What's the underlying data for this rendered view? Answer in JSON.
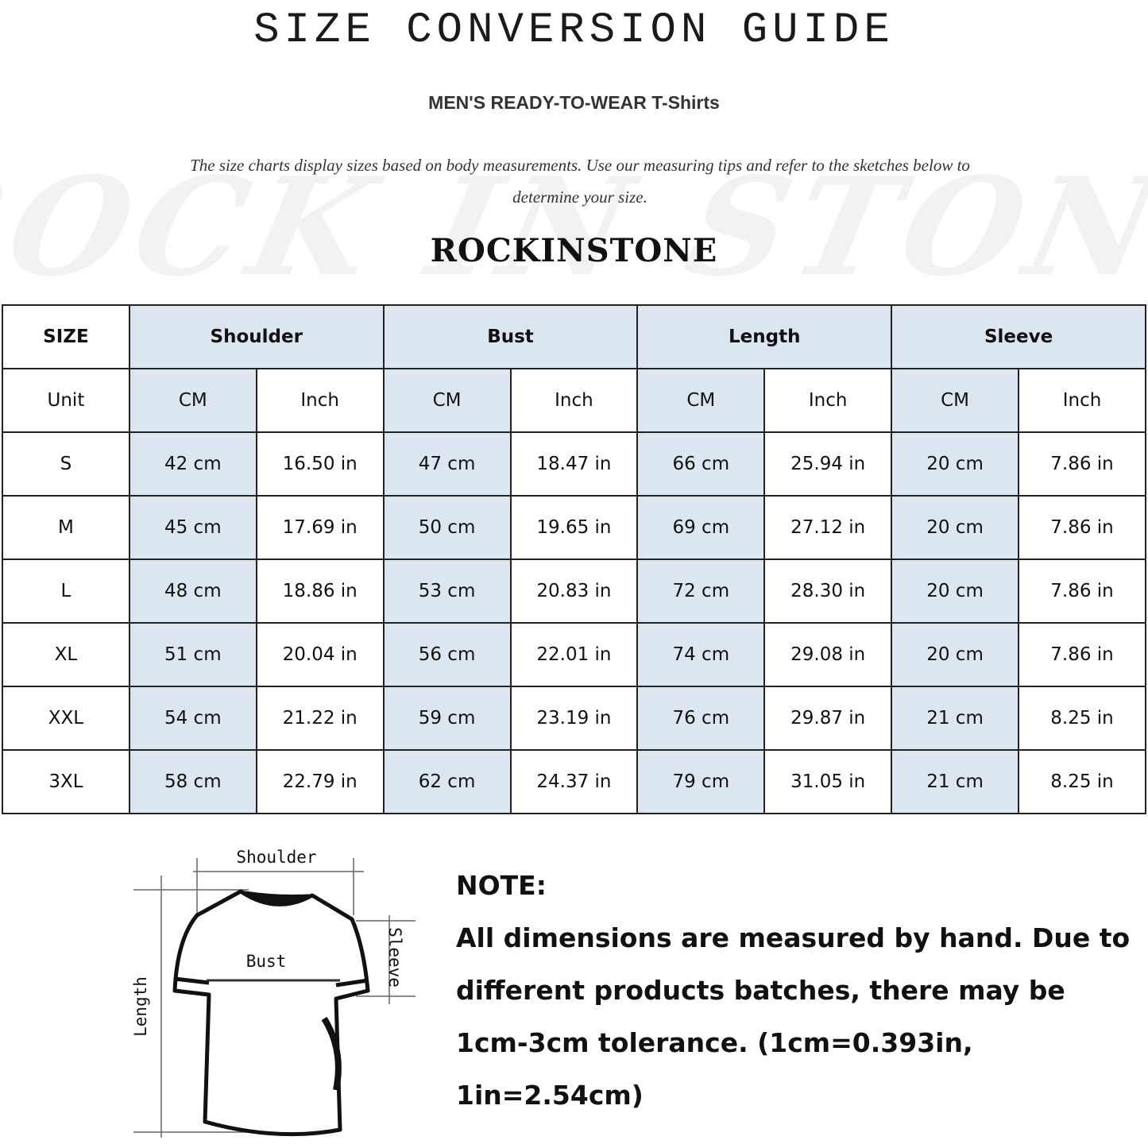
{
  "title": "SIZE CONVERSION GUIDE",
  "subtitle": "MEN'S READY-TO-WEAR T-Shirts",
  "description": "The size charts display sizes based on body measurements. Use our measuring tips and refer to the sketches below to determine your size.",
  "watermark": "ROCK IN STONE",
  "brand": "ROCKINSTONE",
  "colors": {
    "header_fill": "#dce6f1",
    "border": "#222222"
  },
  "table": {
    "size_header": "SIZE",
    "groups": [
      "Shoulder",
      "Bust",
      "Length",
      "Sleeve"
    ],
    "unit_label": "Unit",
    "units": [
      "CM",
      "Inch"
    ],
    "rows": [
      {
        "size": "S",
        "values": [
          "42 cm",
          "16.50 in",
          "47 cm",
          "18.47  in",
          "66 cm",
          "25.94  in",
          "20 cm",
          "7.86  in"
        ]
      },
      {
        "size": "M",
        "values": [
          "45 cm",
          "17.69  in",
          "50 cm",
          "19.65  in",
          "69 cm",
          "27.12  in",
          "20 cm",
          "7.86  in"
        ]
      },
      {
        "size": "L",
        "values": [
          "48 cm",
          "18.86  in",
          "53 cm",
          "20.83  in",
          "72 cm",
          "28.30  in",
          "20 cm",
          "7.86  in"
        ]
      },
      {
        "size": "XL",
        "values": [
          "51 cm",
          "20.04  in",
          "56 cm",
          "22.01  in",
          "74 cm",
          "29.08  in",
          "20 cm",
          "7.86  in"
        ]
      },
      {
        "size": "XXL",
        "values": [
          "54 cm",
          "21.22  in",
          "59 cm",
          "23.19  in",
          "76 cm",
          "29.87  in",
          "21 cm",
          "8.25  in"
        ]
      },
      {
        "size": "3XL",
        "values": [
          "58 cm",
          "22.79  in",
          "62 cm",
          "24.37  in",
          "79 cm",
          "31.05  in",
          "21 cm",
          "8.25  in"
        ]
      }
    ]
  },
  "diagram": {
    "shoulder": "Shoulder",
    "bust": "Bust",
    "length": "Length",
    "sleeve": "Sleeve"
  },
  "note": {
    "heading": "NOTE:",
    "text": "All dimensions are measured by hand. Due to different products batches, there may be 1cm-3cm tolerance. (1cm=0.393in, 1in=2.54cm)"
  }
}
